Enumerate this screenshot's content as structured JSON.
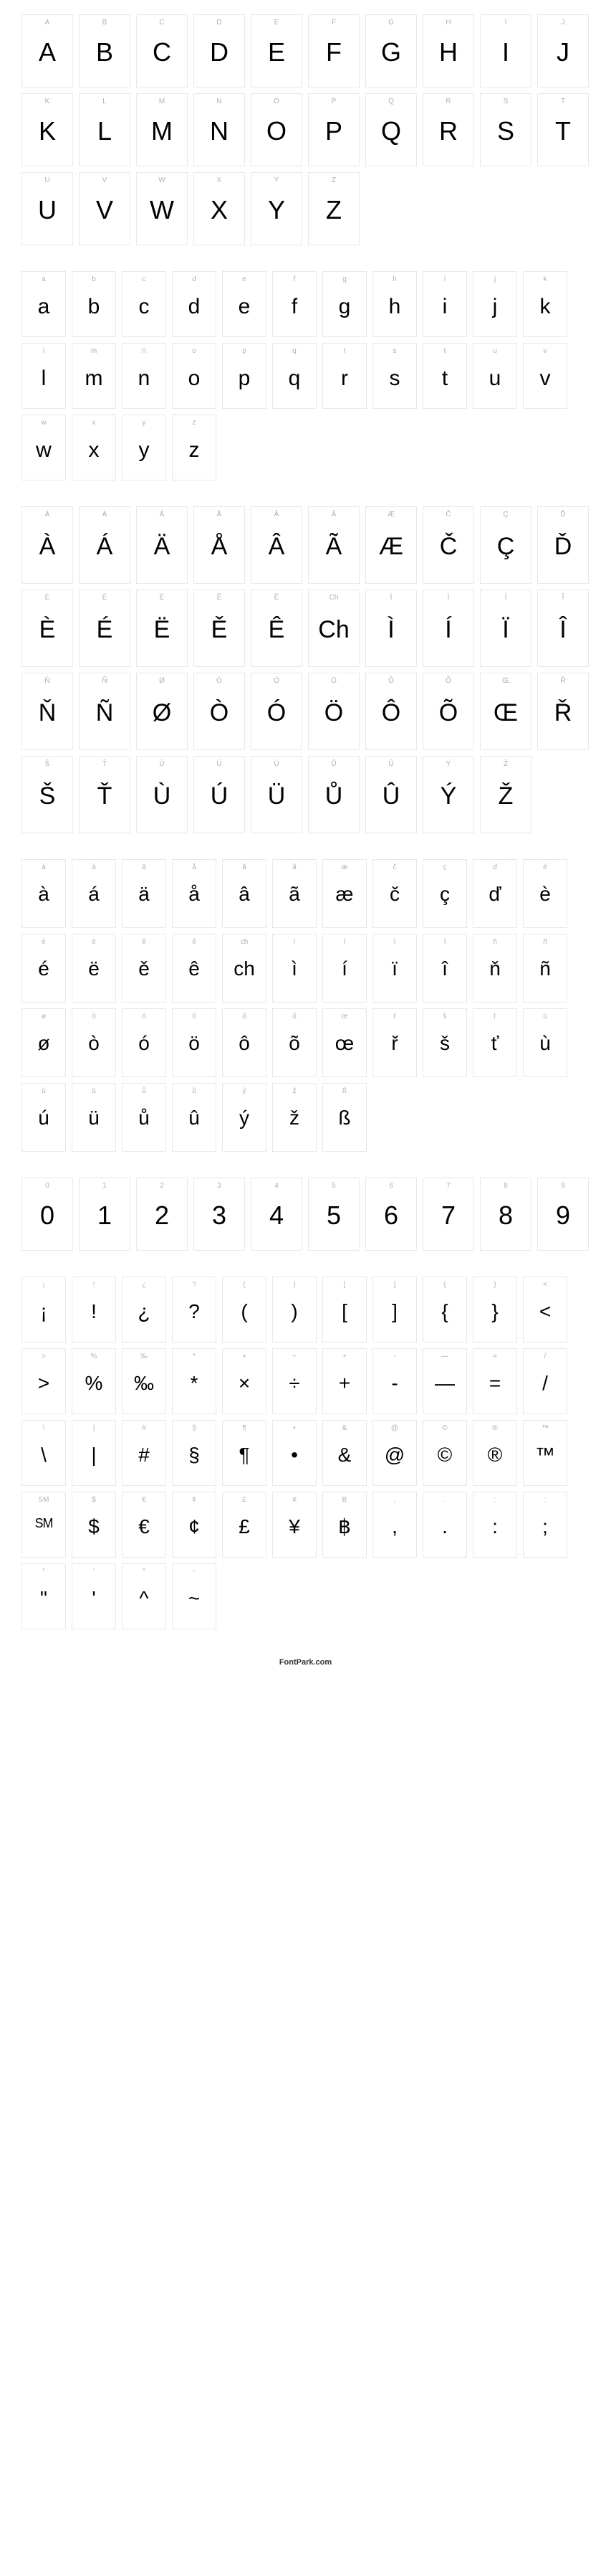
{
  "colors": {
    "border": "#e8e8e8",
    "label": "#b0b0b0",
    "glyph": "#000000",
    "bg": "#ffffff"
  },
  "footer": "FontPark.com",
  "sections": [
    {
      "class": "w-upper",
      "glyphs": [
        {
          "label": "A",
          "glyph": "A"
        },
        {
          "label": "B",
          "glyph": "B"
        },
        {
          "label": "C",
          "glyph": "C"
        },
        {
          "label": "D",
          "glyph": "D"
        },
        {
          "label": "E",
          "glyph": "E"
        },
        {
          "label": "F",
          "glyph": "F"
        },
        {
          "label": "G",
          "glyph": "G"
        },
        {
          "label": "H",
          "glyph": "H"
        },
        {
          "label": "I",
          "glyph": "I"
        },
        {
          "label": "J",
          "glyph": "J"
        },
        {
          "label": "K",
          "glyph": "K"
        },
        {
          "label": "L",
          "glyph": "L"
        },
        {
          "label": "M",
          "glyph": "M"
        },
        {
          "label": "N",
          "glyph": "N"
        },
        {
          "label": "O",
          "glyph": "O"
        },
        {
          "label": "P",
          "glyph": "P"
        },
        {
          "label": "Q",
          "glyph": "Q"
        },
        {
          "label": "R",
          "glyph": "R"
        },
        {
          "label": "S",
          "glyph": "S"
        },
        {
          "label": "T",
          "glyph": "T"
        },
        {
          "label": "U",
          "glyph": "U"
        },
        {
          "label": "V",
          "glyph": "V"
        },
        {
          "label": "W",
          "glyph": "W"
        },
        {
          "label": "X",
          "glyph": "X"
        },
        {
          "label": "Y",
          "glyph": "Y"
        },
        {
          "label": "Z",
          "glyph": "Z"
        }
      ]
    },
    {
      "class": "w-lower",
      "glyphs": [
        {
          "label": "a",
          "glyph": "a"
        },
        {
          "label": "b",
          "glyph": "b"
        },
        {
          "label": "c",
          "glyph": "c"
        },
        {
          "label": "d",
          "glyph": "d"
        },
        {
          "label": "e",
          "glyph": "e"
        },
        {
          "label": "f",
          "glyph": "f"
        },
        {
          "label": "g",
          "glyph": "g"
        },
        {
          "label": "h",
          "glyph": "h"
        },
        {
          "label": "i",
          "glyph": "i"
        },
        {
          "label": "j",
          "glyph": "j"
        },
        {
          "label": "k",
          "glyph": "k"
        },
        {
          "label": "l",
          "glyph": "l"
        },
        {
          "label": "m",
          "glyph": "m"
        },
        {
          "label": "n",
          "glyph": "n"
        },
        {
          "label": "o",
          "glyph": "o"
        },
        {
          "label": "p",
          "glyph": "p"
        },
        {
          "label": "q",
          "glyph": "q"
        },
        {
          "label": "r",
          "glyph": "r"
        },
        {
          "label": "s",
          "glyph": "s"
        },
        {
          "label": "t",
          "glyph": "t"
        },
        {
          "label": "u",
          "glyph": "u"
        },
        {
          "label": "v",
          "glyph": "v"
        },
        {
          "label": "w",
          "glyph": "w"
        },
        {
          "label": "x",
          "glyph": "x"
        },
        {
          "label": "y",
          "glyph": "y"
        },
        {
          "label": "z",
          "glyph": "z"
        }
      ]
    },
    {
      "class": "w-ext-upper",
      "glyphs": [
        {
          "label": "À",
          "glyph": "À"
        },
        {
          "label": "Á",
          "glyph": "Á"
        },
        {
          "label": "Ä",
          "glyph": "Ä"
        },
        {
          "label": "Å",
          "glyph": "Å"
        },
        {
          "label": "Â",
          "glyph": "Â"
        },
        {
          "label": "Ã",
          "glyph": "Ã"
        },
        {
          "label": "Æ",
          "glyph": "Æ"
        },
        {
          "label": "Č",
          "glyph": "Č"
        },
        {
          "label": "Ç",
          "glyph": "Ç"
        },
        {
          "label": "Ď",
          "glyph": "Ď"
        },
        {
          "label": "È",
          "glyph": "È"
        },
        {
          "label": "É",
          "glyph": "É"
        },
        {
          "label": "Ë",
          "glyph": "Ë"
        },
        {
          "label": "Ě",
          "glyph": "Ě"
        },
        {
          "label": "Ê",
          "glyph": "Ê"
        },
        {
          "label": "Ch",
          "glyph": "Ch"
        },
        {
          "label": "Ì",
          "glyph": "Ì"
        },
        {
          "label": "Í",
          "glyph": "Í"
        },
        {
          "label": "Ï",
          "glyph": "Ï"
        },
        {
          "label": "Î",
          "glyph": "Î"
        },
        {
          "label": "Ň",
          "glyph": "Ň"
        },
        {
          "label": "Ñ",
          "glyph": "Ñ"
        },
        {
          "label": "Ø",
          "glyph": "Ø"
        },
        {
          "label": "Ò",
          "glyph": "Ò"
        },
        {
          "label": "Ó",
          "glyph": "Ó"
        },
        {
          "label": "Ö",
          "glyph": "Ö"
        },
        {
          "label": "Ô",
          "glyph": "Ô"
        },
        {
          "label": "Õ",
          "glyph": "Õ"
        },
        {
          "label": "Œ",
          "glyph": "Œ"
        },
        {
          "label": "Ř",
          "glyph": "Ř"
        },
        {
          "label": "Š",
          "glyph": "Š"
        },
        {
          "label": "Ť",
          "glyph": "Ť"
        },
        {
          "label": "Ù",
          "glyph": "Ù"
        },
        {
          "label": "Ú",
          "glyph": "Ú"
        },
        {
          "label": "Ü",
          "glyph": "Ü"
        },
        {
          "label": "Ů",
          "glyph": "Ů"
        },
        {
          "label": "Û",
          "glyph": "Û"
        },
        {
          "label": "Ý",
          "glyph": "Ý"
        },
        {
          "label": "Ž",
          "glyph": "Ž"
        }
      ]
    },
    {
      "class": "w-ext-lower",
      "glyphs": [
        {
          "label": "à",
          "glyph": "à"
        },
        {
          "label": "á",
          "glyph": "á"
        },
        {
          "label": "ä",
          "glyph": "ä"
        },
        {
          "label": "å",
          "glyph": "å"
        },
        {
          "label": "â",
          "glyph": "â"
        },
        {
          "label": "ã",
          "glyph": "ã"
        },
        {
          "label": "æ",
          "glyph": "æ"
        },
        {
          "label": "č",
          "glyph": "č"
        },
        {
          "label": "ç",
          "glyph": "ç"
        },
        {
          "label": "ď",
          "glyph": "ď"
        },
        {
          "label": "è",
          "glyph": "è"
        },
        {
          "label": "é",
          "glyph": "é"
        },
        {
          "label": "ë",
          "glyph": "ë"
        },
        {
          "label": "ě",
          "glyph": "ě"
        },
        {
          "label": "ê",
          "glyph": "ê"
        },
        {
          "label": "ch",
          "glyph": "ch"
        },
        {
          "label": "ì",
          "glyph": "ì"
        },
        {
          "label": "í",
          "glyph": "í"
        },
        {
          "label": "ï",
          "glyph": "ï"
        },
        {
          "label": "î",
          "glyph": "î"
        },
        {
          "label": "ň",
          "glyph": "ň"
        },
        {
          "label": "ñ",
          "glyph": "ñ"
        },
        {
          "label": "ø",
          "glyph": "ø"
        },
        {
          "label": "ò",
          "glyph": "ò"
        },
        {
          "label": "ó",
          "glyph": "ó"
        },
        {
          "label": "ö",
          "glyph": "ö"
        },
        {
          "label": "ô",
          "glyph": "ô"
        },
        {
          "label": "õ",
          "glyph": "õ"
        },
        {
          "label": "œ",
          "glyph": "œ"
        },
        {
          "label": "ř",
          "glyph": "ř"
        },
        {
          "label": "š",
          "glyph": "š"
        },
        {
          "label": "ť",
          "glyph": "ť"
        },
        {
          "label": "ù",
          "glyph": "ù"
        },
        {
          "label": "ú",
          "glyph": "ú"
        },
        {
          "label": "ü",
          "glyph": "ü"
        },
        {
          "label": "ů",
          "glyph": "ů"
        },
        {
          "label": "û",
          "glyph": "û"
        },
        {
          "label": "ý",
          "glyph": "ý"
        },
        {
          "label": "ž",
          "glyph": "ž"
        },
        {
          "label": "ß",
          "glyph": "ß"
        }
      ]
    },
    {
      "class": "w-digits",
      "glyphs": [
        {
          "label": "0",
          "glyph": "0"
        },
        {
          "label": "1",
          "glyph": "1"
        },
        {
          "label": "2",
          "glyph": "2"
        },
        {
          "label": "3",
          "glyph": "3"
        },
        {
          "label": "4",
          "glyph": "4"
        },
        {
          "label": "5",
          "glyph": "5"
        },
        {
          "label": "6",
          "glyph": "6"
        },
        {
          "label": "7",
          "glyph": "7"
        },
        {
          "label": "8",
          "glyph": "8"
        },
        {
          "label": "9",
          "glyph": "9"
        }
      ]
    },
    {
      "class": "w-sym",
      "glyphs": [
        {
          "label": "¡",
          "glyph": "¡"
        },
        {
          "label": "!",
          "glyph": "!"
        },
        {
          "label": "¿",
          "glyph": "¿"
        },
        {
          "label": "?",
          "glyph": "?"
        },
        {
          "label": "(",
          "glyph": "("
        },
        {
          "label": ")",
          "glyph": ")"
        },
        {
          "label": "[",
          "glyph": "["
        },
        {
          "label": "]",
          "glyph": "]"
        },
        {
          "label": "{",
          "glyph": "{"
        },
        {
          "label": "}",
          "glyph": "}"
        },
        {
          "label": "<",
          "glyph": "<"
        },
        {
          "label": ">",
          "glyph": ">"
        },
        {
          "label": "%",
          "glyph": "%"
        },
        {
          "label": "‰",
          "glyph": "‰"
        },
        {
          "label": "*",
          "glyph": "*"
        },
        {
          "label": "×",
          "glyph": "×"
        },
        {
          "label": "÷",
          "glyph": "÷"
        },
        {
          "label": "+",
          "glyph": "+"
        },
        {
          "label": "-",
          "glyph": "-"
        },
        {
          "label": "—",
          "glyph": "—"
        },
        {
          "label": "=",
          "glyph": "="
        },
        {
          "label": "/",
          "glyph": "/"
        },
        {
          "label": "\\",
          "glyph": "\\"
        },
        {
          "label": "|",
          "glyph": "|"
        },
        {
          "label": "#",
          "glyph": "#"
        },
        {
          "label": "§",
          "glyph": "§"
        },
        {
          "label": "¶",
          "glyph": "¶"
        },
        {
          "label": "•",
          "glyph": "•"
        },
        {
          "label": "&",
          "glyph": "&"
        },
        {
          "label": "@",
          "glyph": "@"
        },
        {
          "label": "©",
          "glyph": "©"
        },
        {
          "label": "®",
          "glyph": "®"
        },
        {
          "label": "™",
          "glyph": "™"
        },
        {
          "label": "SM",
          "glyph": "SM",
          "smallcaps": true
        },
        {
          "label": "$",
          "glyph": "$"
        },
        {
          "label": "€",
          "glyph": "€"
        },
        {
          "label": "¢",
          "glyph": "¢"
        },
        {
          "label": "£",
          "glyph": "£"
        },
        {
          "label": "¥",
          "glyph": "¥"
        },
        {
          "label": "B",
          "glyph": "฿"
        },
        {
          "label": ",",
          "glyph": ","
        },
        {
          "label": ".",
          "glyph": "."
        },
        {
          "label": ":",
          "glyph": ":"
        },
        {
          "label": ";",
          "glyph": ";"
        },
        {
          "label": "\"",
          "glyph": "\""
        },
        {
          "label": "'",
          "glyph": "'"
        },
        {
          "label": "^",
          "glyph": "^"
        },
        {
          "label": "~",
          "glyph": "~"
        }
      ]
    }
  ]
}
